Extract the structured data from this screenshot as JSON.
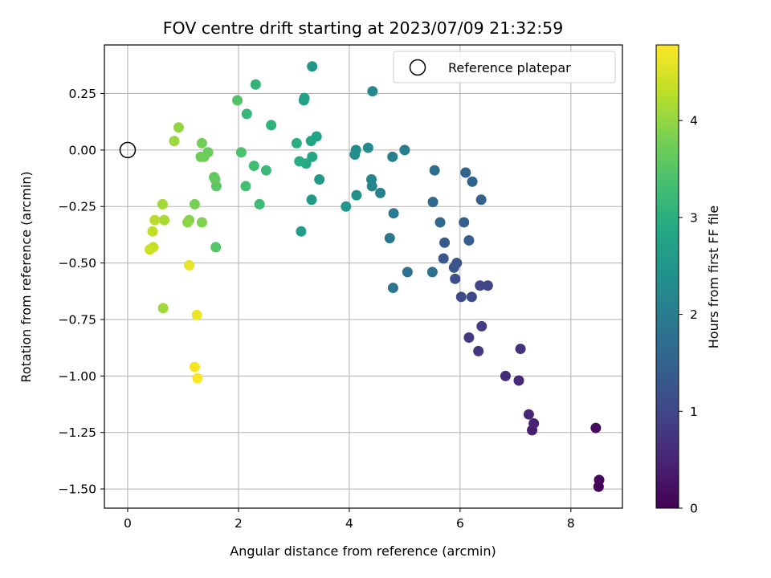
{
  "chart_data": {
    "type": "scatter",
    "title": "FOV centre drift starting at 2023/07/09 21:32:59",
    "xlabel": "Angular distance from reference (arcmin)",
    "ylabel": "Rotation from reference (arcmin)",
    "xlim": [
      -0.42,
      8.93
    ],
    "ylim": [
      -1.585,
      0.465
    ],
    "xticks": [
      0,
      2,
      4,
      6,
      8
    ],
    "xtick_labels": [
      "0",
      "2",
      "4",
      "6",
      "8"
    ],
    "yticks": [
      0.25,
      0.0,
      -0.25,
      -0.5,
      -0.75,
      -1.0,
      -1.25,
      -1.5
    ],
    "ytick_labels": [
      "0.25",
      "0.00",
      "−0.25",
      "−0.50",
      "−0.75",
      "−1.00",
      "−1.25",
      "−1.50"
    ],
    "grid": true,
    "legend": {
      "position": "top-right",
      "entries": [
        "Reference platepar"
      ]
    },
    "reference_point": {
      "x": 0.0,
      "y": 0.0
    },
    "colorbar": {
      "label": "Hours from first FF file",
      "range": [
        0,
        4.78
      ],
      "ticks": [
        0,
        1,
        2,
        3,
        4
      ],
      "tick_labels": [
        "0",
        "1",
        "2",
        "3",
        "4"
      ],
      "colormap": "viridis"
    },
    "points": [
      {
        "x": 8.5,
        "y": -1.49,
        "h": 0.02
      },
      {
        "x": 8.51,
        "y": -1.46,
        "h": 0.08
      },
      {
        "x": 8.45,
        "y": -1.23,
        "h": 0.15
      },
      {
        "x": 7.3,
        "y": -1.24,
        "h": 0.4
      },
      {
        "x": 7.33,
        "y": -1.21,
        "h": 0.45
      },
      {
        "x": 7.24,
        "y": -1.17,
        "h": 0.5
      },
      {
        "x": 7.06,
        "y": -1.02,
        "h": 0.55
      },
      {
        "x": 6.82,
        "y": -1.0,
        "h": 0.6
      },
      {
        "x": 7.09,
        "y": -0.88,
        "h": 0.7
      },
      {
        "x": 6.33,
        "y": -0.89,
        "h": 0.75
      },
      {
        "x": 6.16,
        "y": -0.83,
        "h": 0.8
      },
      {
        "x": 6.39,
        "y": -0.78,
        "h": 0.85
      },
      {
        "x": 6.5,
        "y": -0.6,
        "h": 0.95
      },
      {
        "x": 6.36,
        "y": -0.6,
        "h": 1.0
      },
      {
        "x": 6.21,
        "y": -0.65,
        "h": 1.05
      },
      {
        "x": 6.02,
        "y": -0.65,
        "h": 1.1
      },
      {
        "x": 5.91,
        "y": -0.57,
        "h": 1.15
      },
      {
        "x": 5.94,
        "y": -0.5,
        "h": 1.2
      },
      {
        "x": 5.89,
        "y": -0.52,
        "h": 1.25
      },
      {
        "x": 5.7,
        "y": -0.48,
        "h": 1.3
      },
      {
        "x": 5.72,
        "y": -0.41,
        "h": 1.35
      },
      {
        "x": 6.16,
        "y": -0.4,
        "h": 1.4
      },
      {
        "x": 6.07,
        "y": -0.32,
        "h": 1.45
      },
      {
        "x": 6.38,
        "y": -0.22,
        "h": 1.5
      },
      {
        "x": 6.22,
        "y": -0.14,
        "h": 1.55
      },
      {
        "x": 6.1,
        "y": -0.1,
        "h": 1.5
      },
      {
        "x": 5.64,
        "y": -0.32,
        "h": 1.6
      },
      {
        "x": 5.51,
        "y": -0.23,
        "h": 1.65
      },
      {
        "x": 5.54,
        "y": -0.09,
        "h": 1.7
      },
      {
        "x": 5.5,
        "y": -0.54,
        "h": 1.75
      },
      {
        "x": 5.05,
        "y": -0.54,
        "h": 1.8
      },
      {
        "x": 4.79,
        "y": -0.61,
        "h": 1.85
      },
      {
        "x": 4.73,
        "y": -0.39,
        "h": 1.9
      },
      {
        "x": 4.8,
        "y": -0.28,
        "h": 1.95
      },
      {
        "x": 5.0,
        "y": 0.0,
        "h": 2.0
      },
      {
        "x": 4.78,
        "y": -0.03,
        "h": 2.05
      },
      {
        "x": 4.56,
        "y": -0.19,
        "h": 2.1
      },
      {
        "x": 4.41,
        "y": -0.16,
        "h": 2.15
      },
      {
        "x": 4.4,
        "y": -0.13,
        "h": 2.2
      },
      {
        "x": 4.42,
        "y": 0.26,
        "h": 2.2
      },
      {
        "x": 4.34,
        "y": 0.01,
        "h": 2.25
      },
      {
        "x": 4.12,
        "y": 0.0,
        "h": 2.3
      },
      {
        "x": 4.1,
        "y": -0.02,
        "h": 2.35
      },
      {
        "x": 4.13,
        "y": -0.2,
        "h": 2.4
      },
      {
        "x": 3.94,
        "y": -0.25,
        "h": 2.45
      },
      {
        "x": 3.33,
        "y": 0.37,
        "h": 2.5
      },
      {
        "x": 3.46,
        "y": -0.13,
        "h": 2.55
      },
      {
        "x": 3.32,
        "y": -0.22,
        "h": 2.6
      },
      {
        "x": 3.13,
        "y": -0.36,
        "h": 2.65
      },
      {
        "x": 3.18,
        "y": 0.22,
        "h": 2.7
      },
      {
        "x": 3.19,
        "y": 0.23,
        "h": 2.72
      },
      {
        "x": 3.41,
        "y": 0.06,
        "h": 2.75
      },
      {
        "x": 3.31,
        "y": 0.04,
        "h": 2.8
      },
      {
        "x": 3.33,
        "y": -0.03,
        "h": 2.85
      },
      {
        "x": 3.22,
        "y": -0.06,
        "h": 2.9
      },
      {
        "x": 3.1,
        "y": -0.05,
        "h": 2.95
      },
      {
        "x": 3.05,
        "y": 0.03,
        "h": 3.0
      },
      {
        "x": 2.59,
        "y": 0.11,
        "h": 3.05
      },
      {
        "x": 2.31,
        "y": 0.29,
        "h": 3.1
      },
      {
        "x": 2.15,
        "y": 0.16,
        "h": 3.15
      },
      {
        "x": 2.5,
        "y": -0.09,
        "h": 3.2
      },
      {
        "x": 2.38,
        "y": -0.24,
        "h": 3.25
      },
      {
        "x": 2.28,
        "y": -0.07,
        "h": 3.3
      },
      {
        "x": 2.13,
        "y": -0.16,
        "h": 3.35
      },
      {
        "x": 2.05,
        "y": -0.01,
        "h": 3.4
      },
      {
        "x": 1.98,
        "y": 0.22,
        "h": 3.45
      },
      {
        "x": 1.59,
        "y": -0.43,
        "h": 3.5
      },
      {
        "x": 1.6,
        "y": -0.16,
        "h": 3.55
      },
      {
        "x": 1.56,
        "y": -0.12,
        "h": 3.6
      },
      {
        "x": 1.58,
        "y": -0.13,
        "h": 3.62
      },
      {
        "x": 1.45,
        "y": -0.01,
        "h": 3.65
      },
      {
        "x": 1.38,
        "y": -0.03,
        "h": 3.7
      },
      {
        "x": 1.32,
        "y": -0.03,
        "h": 3.72
      },
      {
        "x": 1.34,
        "y": 0.03,
        "h": 3.75
      },
      {
        "x": 1.21,
        "y": -0.24,
        "h": 3.8
      },
      {
        "x": 1.34,
        "y": -0.32,
        "h": 3.85
      },
      {
        "x": 1.11,
        "y": -0.31,
        "h": 3.9
      },
      {
        "x": 1.08,
        "y": -0.32,
        "h": 3.95
      },
      {
        "x": 0.92,
        "y": 0.1,
        "h": 4.0
      },
      {
        "x": 0.84,
        "y": 0.04,
        "h": 4.05
      },
      {
        "x": 0.63,
        "y": -0.24,
        "h": 4.1
      },
      {
        "x": 0.66,
        "y": -0.31,
        "h": 4.15
      },
      {
        "x": 0.64,
        "y": -0.7,
        "h": 4.1
      },
      {
        "x": 0.49,
        "y": -0.31,
        "h": 4.25
      },
      {
        "x": 0.45,
        "y": -0.36,
        "h": 4.3
      },
      {
        "x": 0.46,
        "y": -0.43,
        "h": 4.35
      },
      {
        "x": 0.4,
        "y": -0.44,
        "h": 4.4
      },
      {
        "x": 1.11,
        "y": -0.51,
        "h": 4.6
      },
      {
        "x": 1.25,
        "y": -0.73,
        "h": 4.65
      },
      {
        "x": 1.21,
        "y": -0.96,
        "h": 4.72
      },
      {
        "x": 1.26,
        "y": -1.01,
        "h": 4.75
      }
    ]
  }
}
